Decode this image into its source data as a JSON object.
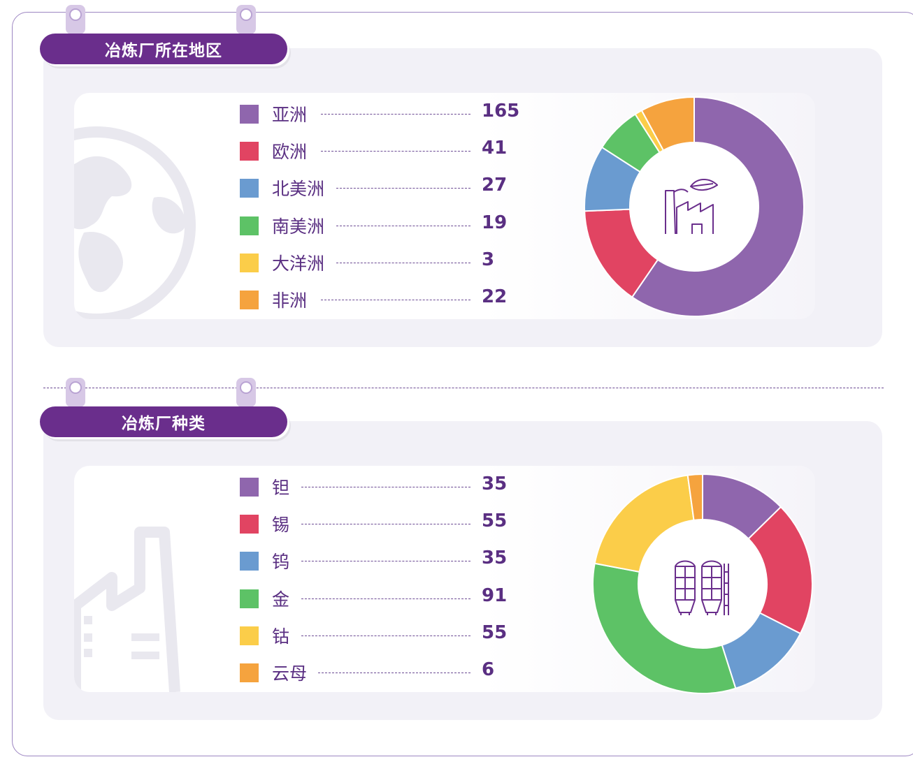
{
  "colors": {
    "purple": "#8f66ad",
    "red": "#e14462",
    "blue": "#6a9bd0",
    "green": "#5dc266",
    "yellow": "#fbcd49",
    "orange": "#f5a33e",
    "title_bg": "#6a2e8c",
    "text": "#5a2f82"
  },
  "sections": [
    {
      "title": "冶炼厂所在地区",
      "center_icon": "factory-leaf-icon",
      "watermark_icon": "globe-icon",
      "chart_data": {
        "type": "pie",
        "donut": true,
        "categories": [
          "亚洲",
          "欧洲",
          "北美洲",
          "南美洲",
          "大洋洲",
          "非洲"
        ],
        "values": [
          165,
          41,
          27,
          19,
          3,
          22
        ],
        "value_labels": [
          "165",
          "41",
          "27",
          "19",
          "3",
          "22"
        ],
        "colors": [
          "#8f66ad",
          "#e14462",
          "#6a9bd0",
          "#5dc266",
          "#fbcd49",
          "#f5a33e"
        ],
        "legend": "left"
      }
    },
    {
      "title": "冶炼厂种类",
      "center_icon": "silo-icon",
      "watermark_icon": "factory-icon",
      "chart_data": {
        "type": "pie",
        "donut": true,
        "categories": [
          "钽",
          "锡",
          "钨",
          "金",
          "钴",
          "云母"
        ],
        "values": [
          35,
          55,
          35,
          91,
          55,
          6
        ],
        "value_labels": [
          "35",
          "55",
          "35",
          "91",
          "55",
          "6"
        ],
        "colors": [
          "#8f66ad",
          "#e14462",
          "#6a9bd0",
          "#5dc266",
          "#fbcd49",
          "#f5a33e"
        ],
        "legend": "left"
      }
    }
  ]
}
